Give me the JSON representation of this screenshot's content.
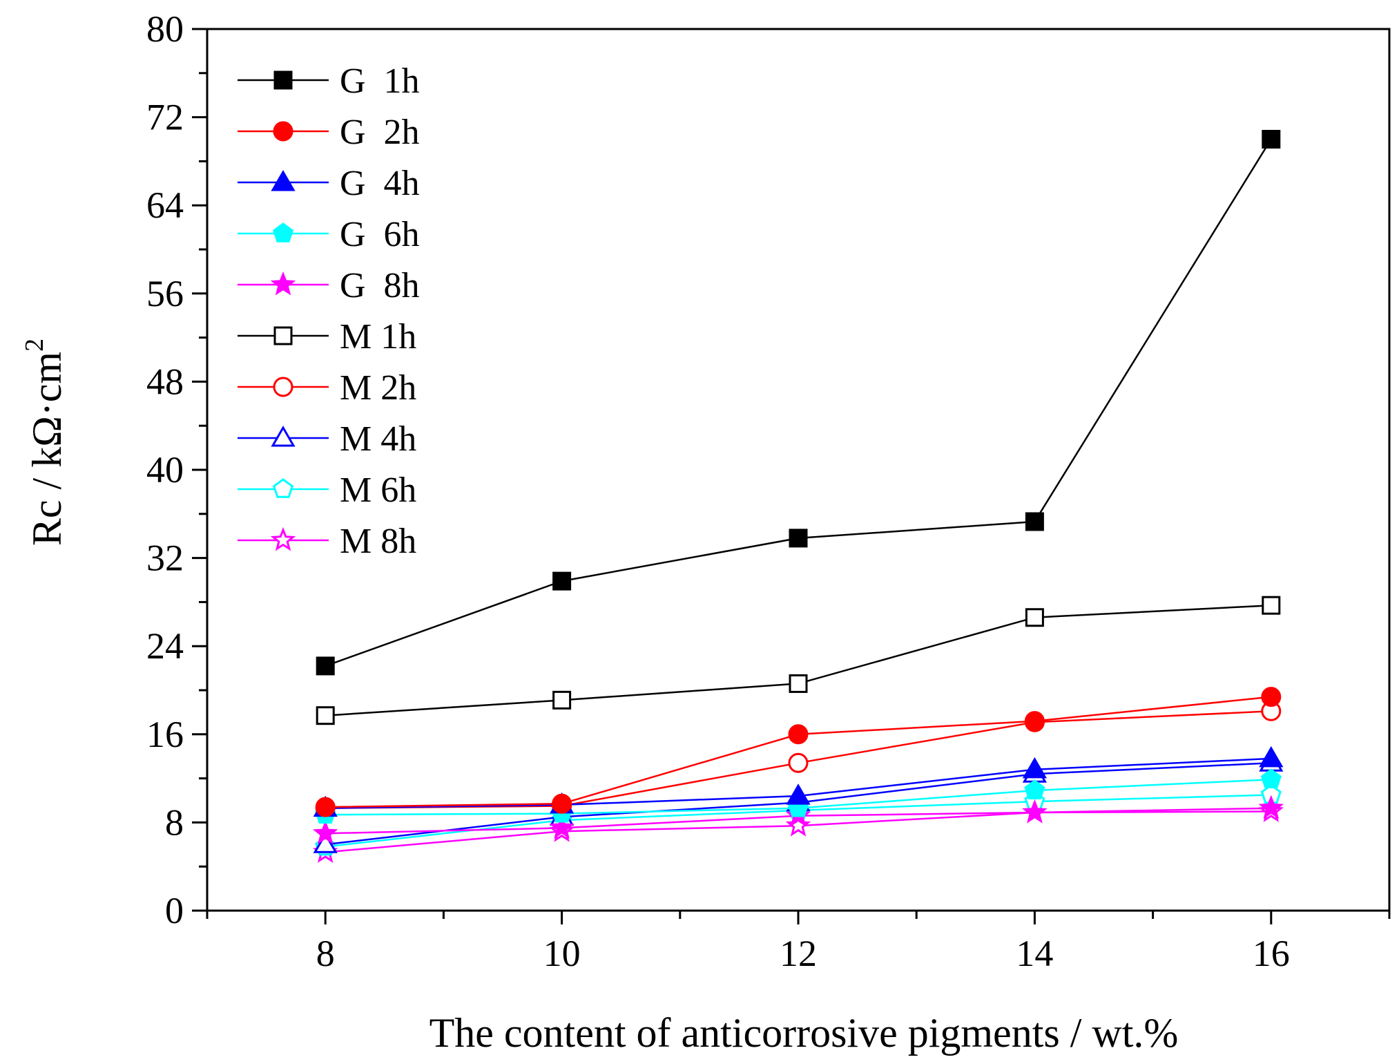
{
  "chart_data": {
    "type": "line",
    "title": "",
    "xlabel": "The content of anticorrosive pigments / wt.%",
    "ylabel": "Rc / kΩ·cm",
    "ylabel_superscript": "2",
    "x": [
      8,
      10,
      12,
      14,
      16
    ],
    "xlim": [
      7,
      17
    ],
    "ylim": [
      0,
      80
    ],
    "xticks": [
      8,
      10,
      12,
      14,
      16
    ],
    "yticks": [
      0,
      8,
      16,
      24,
      32,
      40,
      48,
      56,
      64,
      72,
      80
    ],
    "grid": false,
    "legend_position": "top-left",
    "series": [
      {
        "name": "G  1h",
        "color": "#000000",
        "marker": "square",
        "filled": true,
        "values": [
          22.2,
          29.9,
          33.8,
          35.3,
          70.0
        ]
      },
      {
        "name": "G  2h",
        "color": "#ff0000",
        "marker": "circle",
        "filled": true,
        "values": [
          9.4,
          9.7,
          16.0,
          17.2,
          19.4
        ]
      },
      {
        "name": "G  4h",
        "color": "#0000ff",
        "marker": "triangle",
        "filled": true,
        "values": [
          9.3,
          9.6,
          10.4,
          12.8,
          13.8
        ]
      },
      {
        "name": "G  6h",
        "color": "#00ffff",
        "marker": "pentagon",
        "filled": true,
        "values": [
          8.7,
          8.8,
          9.3,
          10.9,
          11.9
        ]
      },
      {
        "name": "G  8h",
        "color": "#ff00ff",
        "marker": "star",
        "filled": true,
        "values": [
          7.0,
          7.5,
          8.6,
          8.9,
          9.3
        ]
      },
      {
        "name": "M 1h",
        "color": "#000000",
        "marker": "square",
        "filled": false,
        "values": [
          17.7,
          19.1,
          20.6,
          26.6,
          27.7
        ]
      },
      {
        "name": "M 2h",
        "color": "#ff0000",
        "marker": "circle",
        "filled": false,
        "values": [
          9.3,
          9.5,
          13.4,
          17.1,
          18.1
        ]
      },
      {
        "name": "M 4h",
        "color": "#0000ff",
        "marker": "triangle",
        "filled": false,
        "values": [
          6.0,
          8.5,
          9.8,
          12.4,
          13.4
        ]
      },
      {
        "name": "M 6h",
        "color": "#00ffff",
        "marker": "pentagon",
        "filled": false,
        "values": [
          5.8,
          8.2,
          9.1,
          9.9,
          10.5
        ]
      },
      {
        "name": "M 8h",
        "color": "#ff00ff",
        "marker": "star",
        "filled": false,
        "values": [
          5.3,
          7.2,
          7.7,
          8.9,
          9.0
        ]
      }
    ]
  }
}
